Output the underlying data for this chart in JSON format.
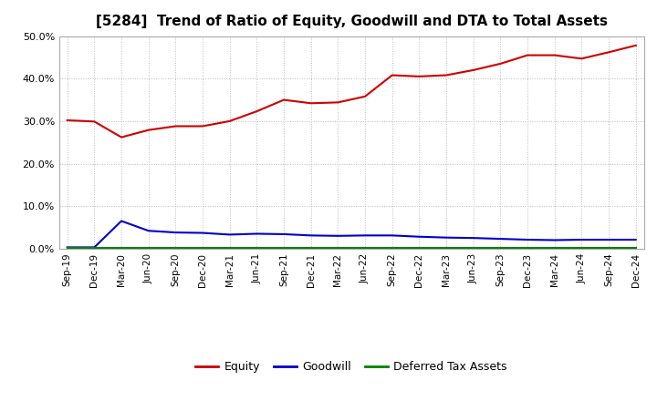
{
  "title": "[5284]  Trend of Ratio of Equity, Goodwill and DTA to Total Assets",
  "x_labels": [
    "Sep-19",
    "Dec-19",
    "Mar-20",
    "Jun-20",
    "Sep-20",
    "Dec-20",
    "Mar-21",
    "Jun-21",
    "Sep-21",
    "Dec-21",
    "Mar-22",
    "Jun-22",
    "Sep-22",
    "Dec-22",
    "Mar-23",
    "Jun-23",
    "Sep-23",
    "Dec-23",
    "Mar-24",
    "Jun-24",
    "Sep-24",
    "Dec-24"
  ],
  "equity": [
    0.302,
    0.299,
    0.262,
    0.279,
    0.288,
    0.288,
    0.3,
    0.323,
    0.35,
    0.342,
    0.344,
    0.358,
    0.408,
    0.405,
    0.408,
    0.42,
    0.435,
    0.455,
    0.455,
    0.447,
    0.462,
    0.478
  ],
  "goodwill": [
    0.003,
    0.003,
    0.065,
    0.042,
    0.038,
    0.037,
    0.033,
    0.035,
    0.034,
    0.031,
    0.03,
    0.031,
    0.031,
    0.028,
    0.026,
    0.025,
    0.023,
    0.021,
    0.02,
    0.021,
    0.021,
    0.021
  ],
  "dta": [
    0.002,
    0.002,
    0.002,
    0.002,
    0.002,
    0.002,
    0.002,
    0.002,
    0.002,
    0.002,
    0.002,
    0.002,
    0.002,
    0.002,
    0.002,
    0.002,
    0.002,
    0.002,
    0.002,
    0.002,
    0.002,
    0.002
  ],
  "equity_color": "#cc0000",
  "goodwill_color": "#0000cc",
  "dta_color": "#008000",
  "ylim": [
    0.0,
    0.5
  ],
  "yticks": [
    0.0,
    0.1,
    0.2,
    0.3,
    0.4,
    0.5
  ],
  "background_color": "#ffffff",
  "plot_bg_color": "#ffffff",
  "grid_color": "#bbbbbb",
  "legend_labels": [
    "Equity",
    "Goodwill",
    "Deferred Tax Assets"
  ],
  "title_fontsize": 11,
  "line_width": 1.5,
  "tick_fontsize": 7.5,
  "ytick_fontsize": 8
}
